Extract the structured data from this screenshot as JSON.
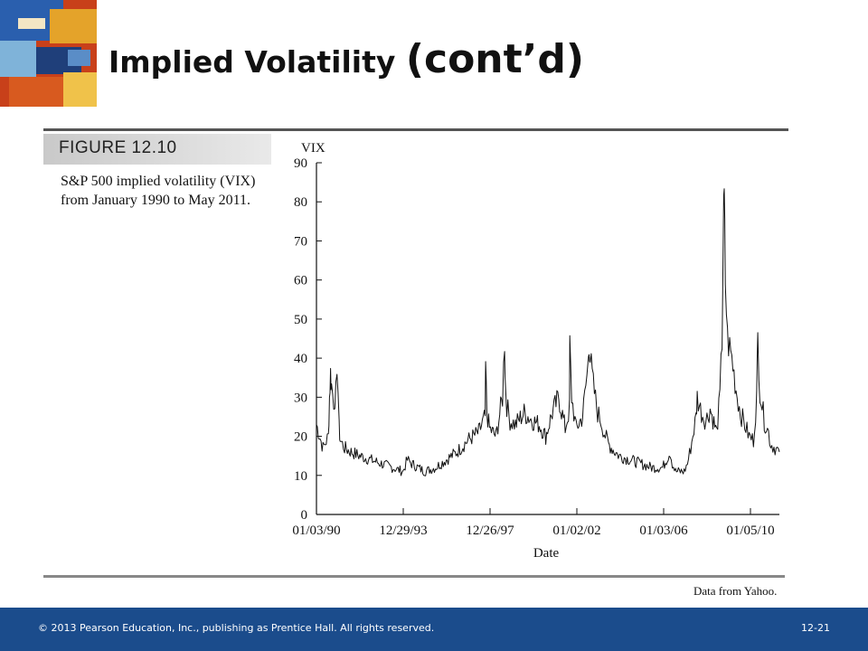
{
  "slide": {
    "title": "Implied Volatility ",
    "title_suffix": "(cont’d)"
  },
  "figure": {
    "label": "FIGURE 12.10",
    "caption": "S&P 500 implied volatility (VIX) from January 1990 to May 2011.",
    "source": "Data from Yahoo."
  },
  "footer": {
    "copyright": "© 2013 Pearson Education, Inc., publishing as Prentice Hall.  All rights reserved.",
    "page": "12-21"
  },
  "chart_data": {
    "type": "line",
    "title": "",
    "xlabel": "Date",
    "ylabel": "VIX",
    "ylim": [
      0,
      90
    ],
    "yticks": [
      "0",
      "10",
      "20",
      "30",
      "40",
      "50",
      "60",
      "70",
      "80",
      "90"
    ],
    "xticks": [
      "01/03/90",
      "12/29/93",
      "12/26/97",
      "01/02/02",
      "01/03/06",
      "01/05/10"
    ],
    "xrange": [
      1990.0,
      2011.4
    ],
    "series": [
      {
        "name": "",
        "color": "#111111",
        "x": [
          1990.0,
          1990.3,
          1990.55,
          1990.6,
          1990.65,
          1990.7,
          1990.8,
          1990.9,
          1991.0,
          1991.05,
          1991.1,
          1991.3,
          1991.6,
          1992.0,
          1992.5,
          1993.0,
          1993.5,
          1994.0,
          1994.2,
          1994.4,
          1994.7,
          1995.0,
          1995.5,
          1996.0,
          1996.5,
          1997.0,
          1997.5,
          1997.8,
          1997.82,
          1997.88,
          1998.0,
          1998.3,
          1998.6,
          1998.7,
          1998.72,
          1998.8,
          1998.95,
          1999.2,
          1999.6,
          2000.0,
          2000.3,
          2000.6,
          2000.9,
          2001.2,
          2001.5,
          2001.7,
          2001.71,
          2001.8,
          2002.0,
          2002.3,
          2002.55,
          2002.6,
          2002.65,
          2002.8,
          2003.0,
          2003.15,
          2003.3,
          2003.5,
          2003.8,
          2004.0,
          2004.5,
          2005.0,
          2005.5,
          2006.0,
          2006.35,
          2006.45,
          2006.6,
          2007.0,
          2007.15,
          2007.3,
          2007.55,
          2007.6,
          2007.8,
          2008.0,
          2008.2,
          2008.5,
          2008.65,
          2008.75,
          2008.8,
          2008.85,
          2008.9,
          2009.0,
          2009.2,
          2009.4,
          2009.6,
          2009.8,
          2010.0,
          2010.2,
          2010.35,
          2010.4,
          2010.5,
          2010.7,
          2010.9,
          2011.0,
          2011.2,
          2011.4
        ],
        "y": [
          23,
          17,
          20,
          30,
          36,
          33,
          29,
          31,
          34,
          22,
          19,
          17,
          16,
          15,
          14,
          13,
          12,
          11,
          14,
          13,
          12,
          11,
          12,
          14,
          16,
          19,
          21,
          25,
          38,
          26,
          22,
          20,
          30,
          45,
          35,
          28,
          24,
          23,
          26,
          24,
          23,
          20,
          26,
          30,
          22,
          27,
          43,
          30,
          22,
          25,
          38,
          45,
          40,
          33,
          26,
          24,
          21,
          18,
          16,
          15,
          14,
          13,
          12,
          12,
          16,
          13,
          11,
          11,
          13,
          17,
          25,
          30,
          26,
          24,
          27,
          21,
          30,
          45,
          70,
          80,
          60,
          45,
          40,
          32,
          26,
          23,
          20,
          19,
          30,
          45,
          32,
          24,
          21,
          18,
          17,
          16
        ]
      }
    ]
  }
}
